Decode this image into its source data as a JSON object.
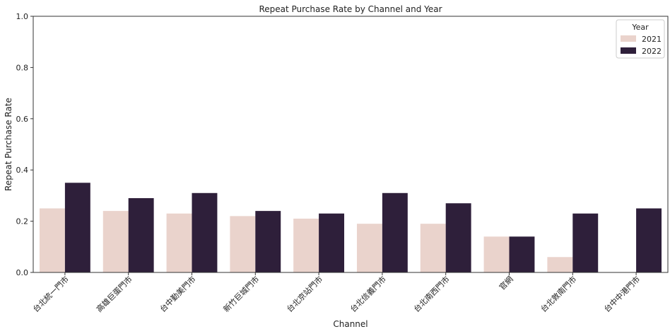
{
  "colors": {
    "series_2021": "#ead3cc",
    "series_2022": "#2e1f3a",
    "axis": "#333333"
  },
  "chart_data": {
    "type": "bar",
    "title": "Repeat Purchase Rate by Channel and Year",
    "xlabel": "Channel",
    "ylabel": "Repeat Purchase Rate",
    "ylim": [
      0,
      1.0
    ],
    "yticks": [
      "0.0",
      "0.2",
      "0.4",
      "0.6",
      "0.8",
      "1.0"
    ],
    "grid": false,
    "legend": {
      "title": "Year",
      "placement": "top-right"
    },
    "categories": [
      "台北統一門市",
      "高雄巨蛋門市",
      "台中勤美門市",
      "新竹巨城門市",
      "台北京站門市",
      "台北信義門市",
      "台北南西門市",
      "官網",
      "台北敦南門市",
      "台中中港門市"
    ],
    "series": [
      {
        "name": "2021",
        "values": [
          0.25,
          0.24,
          0.23,
          0.22,
          0.21,
          0.19,
          0.19,
          0.14,
          0.06,
          null
        ]
      },
      {
        "name": "2022",
        "values": [
          0.35,
          0.29,
          0.31,
          0.24,
          0.23,
          0.31,
          0.27,
          0.14,
          0.23,
          0.25
        ]
      }
    ]
  }
}
